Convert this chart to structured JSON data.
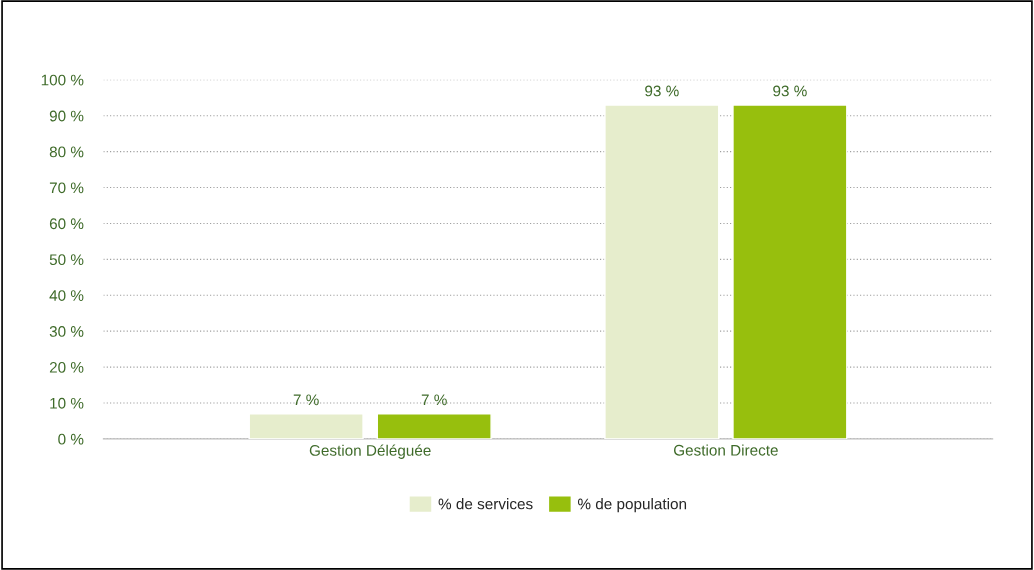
{
  "chart_data": {
    "type": "bar",
    "categories": [
      "Gestion Déléguée",
      "Gestion Directe"
    ],
    "series": [
      {
        "name": "% de services",
        "color": "#e6edcc",
        "values": [
          7,
          93
        ],
        "value_labels": [
          "7 %",
          "93 %"
        ]
      },
      {
        "name": "% de population",
        "color": "#97bf0d",
        "values": [
          7,
          93
        ],
        "value_labels": [
          "7 %",
          "93 %"
        ]
      }
    ],
    "ylim": [
      0,
      100
    ],
    "yticks": [
      {
        "value": 0,
        "label": "0 %"
      },
      {
        "value": 10,
        "label": "10 %"
      },
      {
        "value": 20,
        "label": "20 %"
      },
      {
        "value": 30,
        "label": "30 %"
      },
      {
        "value": 40,
        "label": "40 %"
      },
      {
        "value": 50,
        "label": "50 %"
      },
      {
        "value": 60,
        "label": "60 %"
      },
      {
        "value": 70,
        "label": "70 %"
      },
      {
        "value": 80,
        "label": "80 %"
      },
      {
        "value": 90,
        "label": "90 %"
      },
      {
        "value": 100,
        "label": "100 %"
      }
    ],
    "grid": "y",
    "legend": "bottom"
  }
}
